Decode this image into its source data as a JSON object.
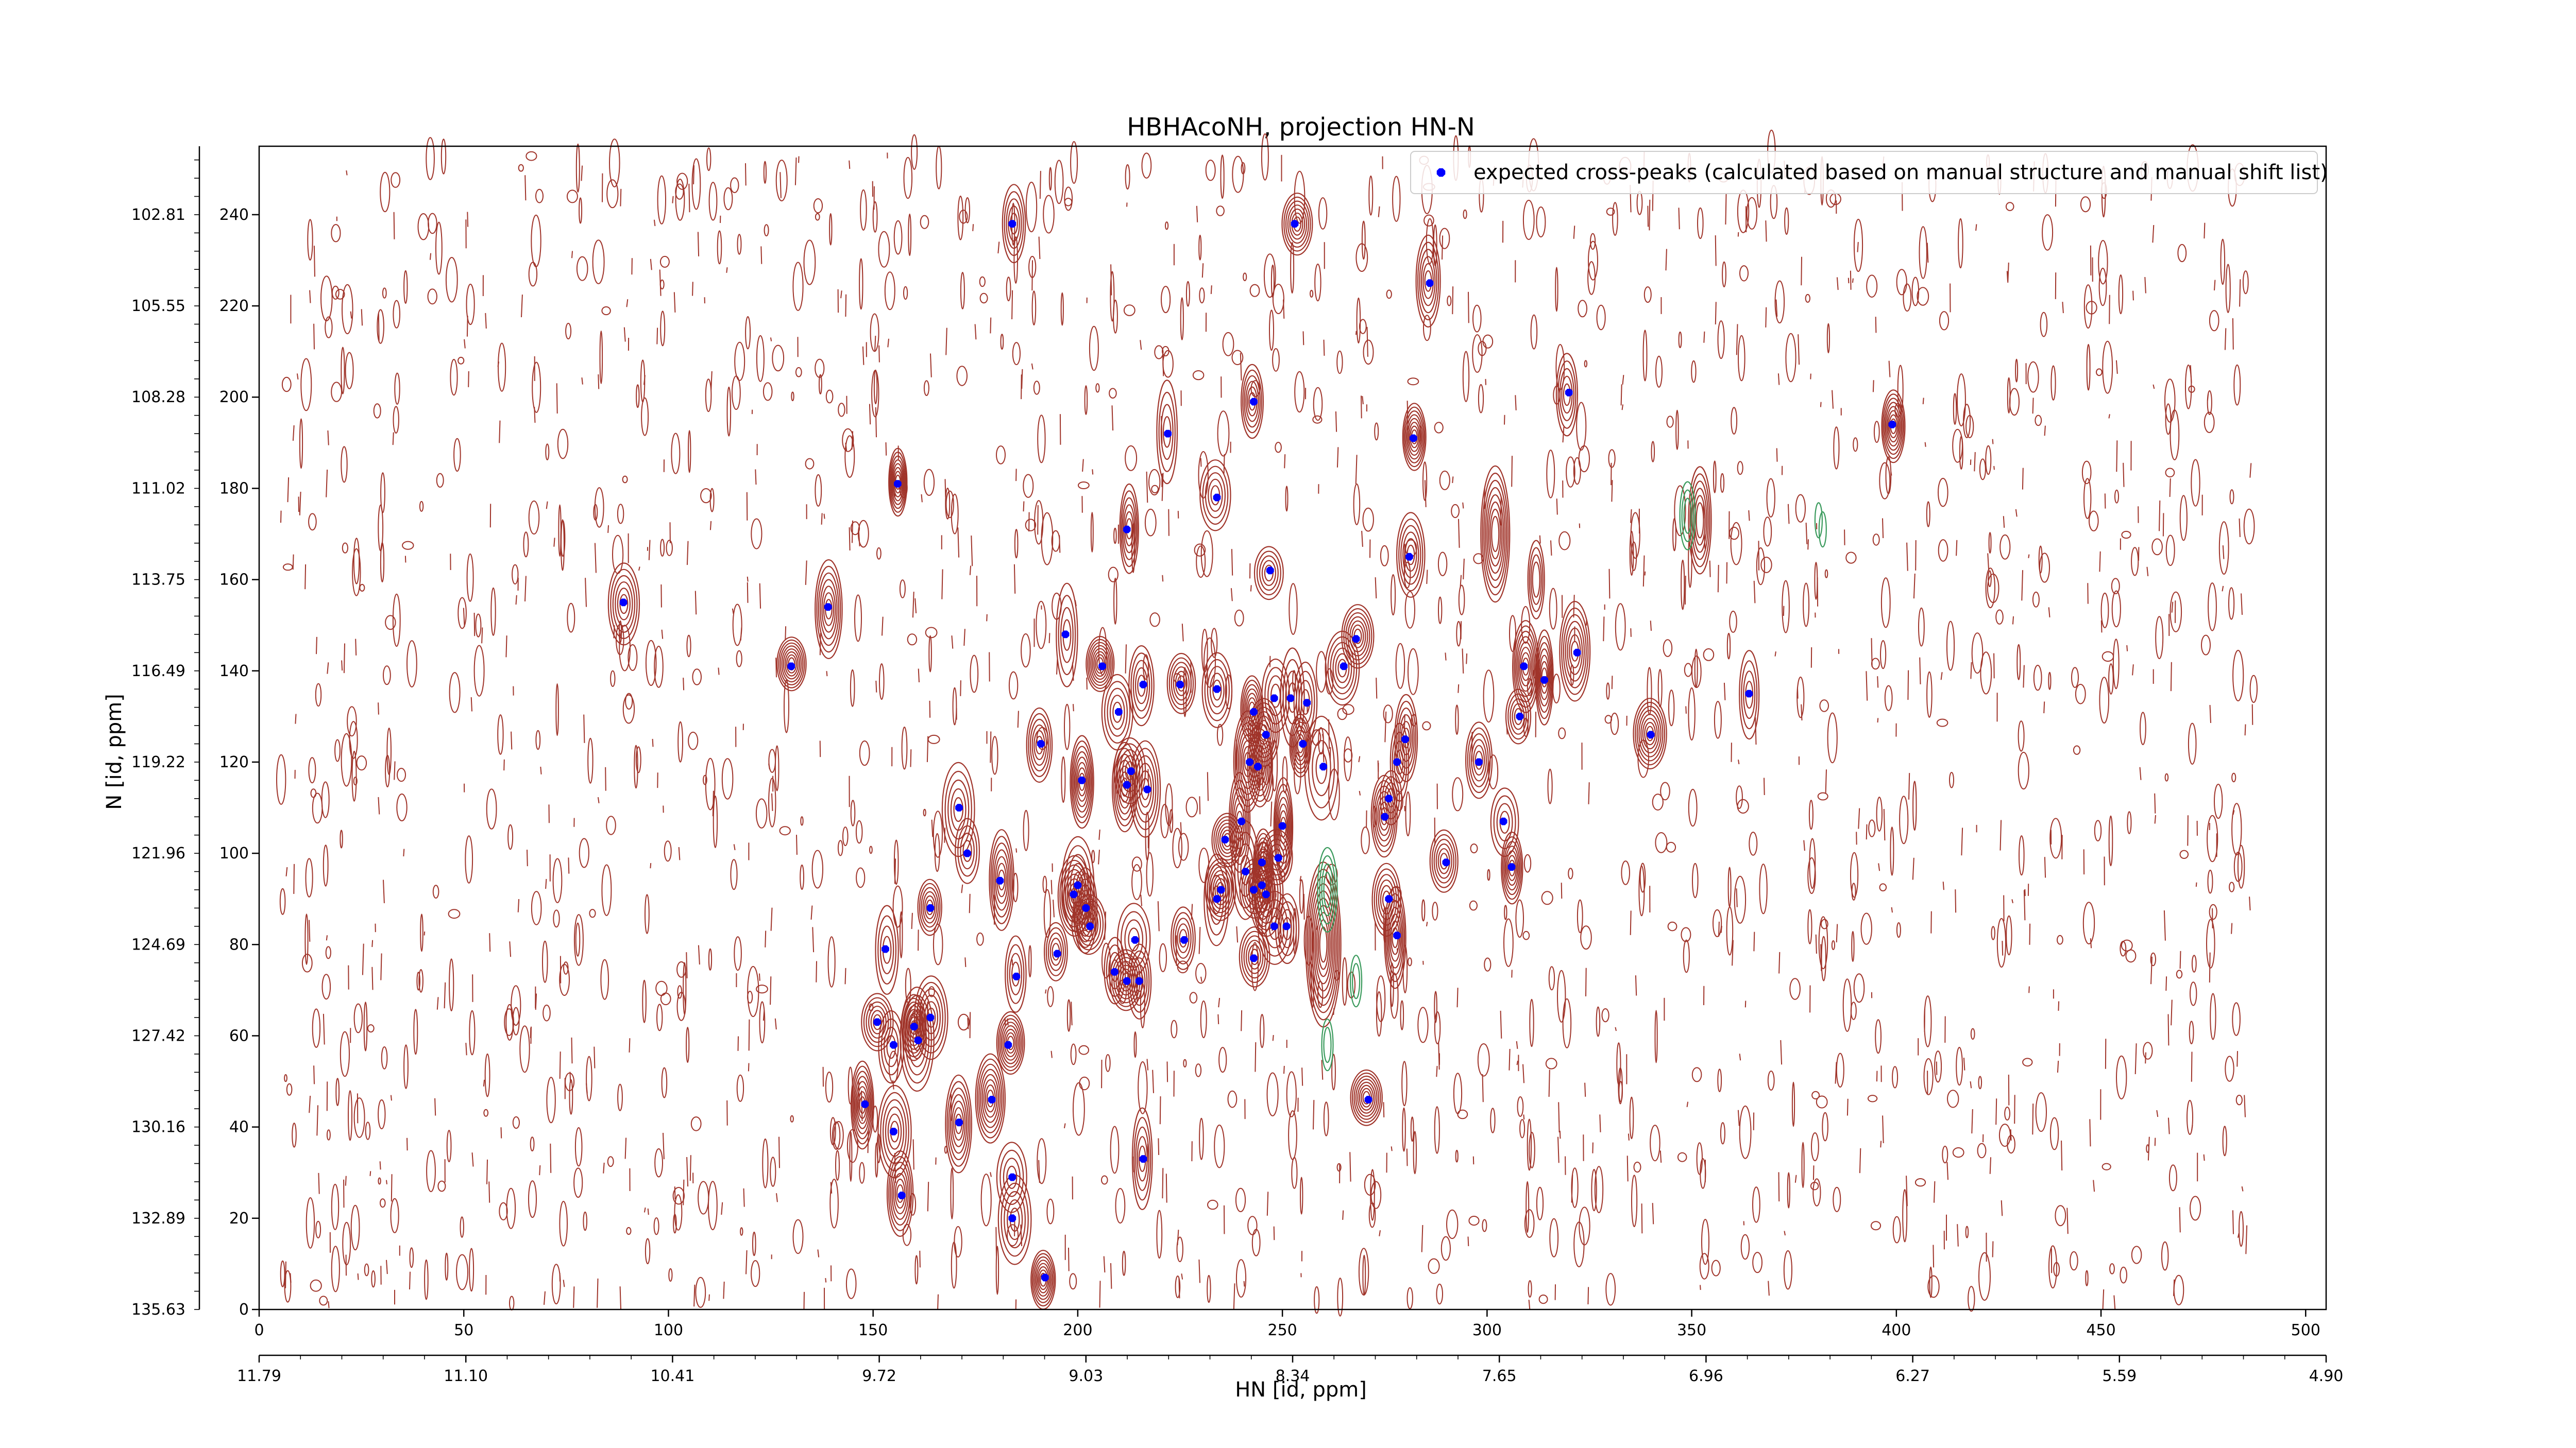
{
  "chart_data": {
    "type": "scatter",
    "title": "HBHAcoNH, projection HN-N",
    "xlabel": "HN [id, ppm]",
    "ylabel": "N [id, ppm]",
    "x_index": {
      "range": [
        0,
        505
      ],
      "ticks": [
        0,
        50,
        100,
        150,
        200,
        250,
        300,
        350,
        400,
        450,
        500
      ]
    },
    "x_ppm": {
      "range": [
        11.79,
        4.9
      ],
      "ticks": [
        "11.79",
        "11.10",
        "10.41",
        "9.72",
        "9.03",
        "8.34",
        "7.65",
        "6.96",
        "6.27",
        "5.59",
        "4.90"
      ]
    },
    "y_index": {
      "range": [
        0,
        255
      ],
      "ticks": [
        0,
        20,
        40,
        60,
        80,
        100,
        120,
        140,
        160,
        180,
        200,
        220,
        240
      ]
    },
    "y_ppm": {
      "ticks": [
        "135.63",
        "132.89",
        "130.16",
        "127.42",
        "124.69",
        "121.96",
        "119.22",
        "116.49",
        "113.75",
        "111.02",
        "108.28",
        "105.55",
        "102.81"
      ]
    },
    "grid": false,
    "legend_position": "top-right",
    "contour_colors": {
      "positive": "#a0342a",
      "negative": "#3a9a5c"
    },
    "series": [
      {
        "name": "expected cross-peaks (calculated based on manual structure and manual shift list)",
        "color": "#0000ff",
        "points": [
          [
            184,
            238
          ],
          [
            253,
            238
          ],
          [
            286,
            225
          ],
          [
            320,
            201
          ],
          [
            243,
            199
          ],
          [
            222,
            192
          ],
          [
            282,
            191
          ],
          [
            399,
            194
          ],
          [
            156,
            181
          ],
          [
            234,
            178
          ],
          [
            212,
            171
          ],
          [
            281,
            165
          ],
          [
            247,
            162
          ],
          [
            89,
            155
          ],
          [
            139,
            154
          ],
          [
            197,
            148
          ],
          [
            268,
            147
          ],
          [
            322,
            144
          ],
          [
            130,
            141
          ],
          [
            206,
            141
          ],
          [
            265,
            141
          ],
          [
            314,
            138
          ],
          [
            309,
            141
          ],
          [
            216,
            137
          ],
          [
            225,
            137
          ],
          [
            234,
            136
          ],
          [
            364,
            135
          ],
          [
            210,
            131
          ],
          [
            243,
            131
          ],
          [
            246,
            126
          ],
          [
            248,
            134
          ],
          [
            252,
            134
          ],
          [
            256,
            133
          ],
          [
            255,
            124
          ],
          [
            191,
            124
          ],
          [
            280,
            125
          ],
          [
            340,
            126
          ],
          [
            308,
            130
          ],
          [
            242,
            120
          ],
          [
            244,
            119
          ],
          [
            260,
            119
          ],
          [
            278,
            120
          ],
          [
            298,
            120
          ],
          [
            213,
            118
          ],
          [
            212,
            115
          ],
          [
            217,
            114
          ],
          [
            201,
            116
          ],
          [
            171,
            110
          ],
          [
            240,
            107
          ],
          [
            250,
            106
          ],
          [
            276,
            112
          ],
          [
            275,
            108
          ],
          [
            304,
            107
          ],
          [
            173,
            100
          ],
          [
            181,
            94
          ],
          [
            236,
            103
          ],
          [
            245,
            98
          ],
          [
            241,
            96
          ],
          [
            249,
            99
          ],
          [
            290,
            98
          ],
          [
            306,
            97
          ],
          [
            200,
            93
          ],
          [
            199,
            91
          ],
          [
            202,
            88
          ],
          [
            203,
            84
          ],
          [
            234,
            90
          ],
          [
            235,
            92
          ],
          [
            243,
            92
          ],
          [
            245,
            93
          ],
          [
            246,
            91
          ],
          [
            164,
            88
          ],
          [
            276,
            90
          ],
          [
            248,
            84
          ],
          [
            251,
            84
          ],
          [
            214,
            81
          ],
          [
            226,
            81
          ],
          [
            278,
            82
          ],
          [
            153,
            79
          ],
          [
            195,
            78
          ],
          [
            243,
            77
          ],
          [
            209,
            74
          ],
          [
            212,
            72
          ],
          [
            215,
            72
          ],
          [
            185,
            73
          ],
          [
            151,
            63
          ],
          [
            164,
            64
          ],
          [
            160,
            62
          ],
          [
            155,
            58
          ],
          [
            161,
            59
          ],
          [
            183,
            58
          ],
          [
            148,
            45
          ],
          [
            179,
            46
          ],
          [
            171,
            41
          ],
          [
            155,
            39
          ],
          [
            271,
            46
          ],
          [
            216,
            33
          ],
          [
            184,
            29
          ],
          [
            157,
            25
          ],
          [
            184,
            20
          ],
          [
            192,
            7
          ]
        ]
      }
    ]
  }
}
